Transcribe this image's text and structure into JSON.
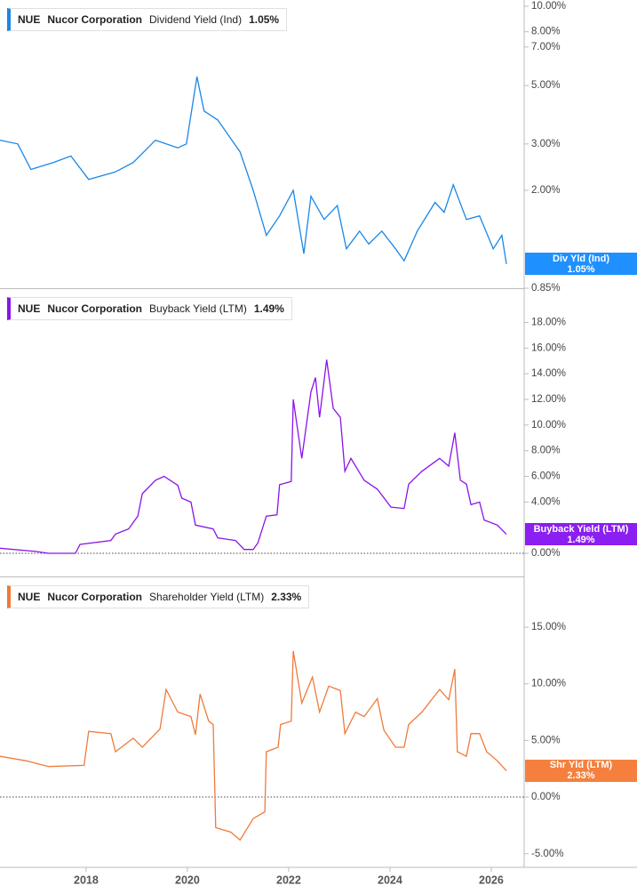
{
  "chart_data": [
    {
      "type": "line",
      "ticker": "NUE",
      "company": "Nucor Corporation",
      "current_label": "1.05%",
      "tag": "Div Yld (Ind)",
      "log_scale": true,
      "zero_line": false,
      "tag_color": "#1e90ff",
      "xlim": [
        2016.3,
        2026.65
      ],
      "ylim": [
        0.85,
        10.56
      ],
      "yticks": [
        {
          "value": 10,
          "label": "10.00%"
        },
        {
          "value": 8,
          "label": "8.00%"
        },
        {
          "value": 7,
          "label": "7.00%"
        },
        {
          "value": 5,
          "label": "5.00%"
        },
        {
          "value": 3,
          "label": "3.00%"
        },
        {
          "value": 2,
          "label": "2.00%"
        },
        {
          "value": 0.85,
          "label": "0.85%"
        }
      ],
      "x": [
        2016.3,
        2016.65,
        2016.91,
        2017.35,
        2017.7,
        2018.05,
        2018.58,
        2018.93,
        2019.37,
        2019.81,
        2019.98,
        2020.19,
        2020.33,
        2020.6,
        2021.04,
        2021.3,
        2021.56,
        2021.82,
        2022.09,
        2022.3,
        2022.44,
        2022.7,
        2022.96,
        2023.14,
        2023.4,
        2023.58,
        2023.84,
        2024.11,
        2024.28,
        2024.54,
        2024.89,
        2025.07,
        2025.25,
        2025.51,
        2025.77,
        2026.04,
        2026.21,
        2026.3
      ],
      "series": [
        {
          "name": "Dividend Yield (Ind)",
          "color": "#1a87e6",
          "values": [
            3.1,
            3.0,
            2.4,
            2.55,
            2.7,
            2.2,
            2.35,
            2.55,
            3.1,
            2.9,
            3.0,
            5.4,
            4.0,
            3.7,
            2.8,
            2.0,
            1.35,
            1.6,
            2.0,
            1.15,
            1.9,
            1.55,
            1.75,
            1.2,
            1.4,
            1.25,
            1.4,
            1.2,
            1.08,
            1.4,
            1.8,
            1.65,
            2.1,
            1.55,
            1.6,
            1.2,
            1.35,
            1.05
          ]
        }
      ]
    },
    {
      "type": "line",
      "ticker": "NUE",
      "company": "Nucor Corporation",
      "current_label": "1.49%",
      "tag": "Buyback Yield (LTM)",
      "log_scale": false,
      "zero_line": true,
      "tag_color": "#8b1ef0",
      "xlim": [
        2016.3,
        2026.65
      ],
      "ylim": [
        -1.8,
        20.6
      ],
      "yticks": [
        {
          "value": 0,
          "label": "0.00%"
        },
        {
          "value": 4,
          "label": "4.00%"
        },
        {
          "value": 6,
          "label": "6.00%"
        },
        {
          "value": 8,
          "label": "8.00%"
        },
        {
          "value": 10,
          "label": "10.00%"
        },
        {
          "value": 12,
          "label": "12.00%"
        },
        {
          "value": 14,
          "label": "14.00%"
        },
        {
          "value": 16,
          "label": "16.00%"
        },
        {
          "value": 18,
          "label": "18.00%"
        }
      ],
      "x": [
        2016.3,
        2017.0,
        2017.26,
        2017.79,
        2017.88,
        2018.49,
        2018.58,
        2018.84,
        2019.02,
        2019.11,
        2019.37,
        2019.54,
        2019.81,
        2019.89,
        2020.07,
        2020.16,
        2020.51,
        2020.6,
        2020.95,
        2021.12,
        2021.3,
        2021.39,
        2021.56,
        2021.77,
        2021.82,
        2022.05,
        2022.09,
        2022.26,
        2022.44,
        2022.53,
        2022.61,
        2022.75,
        2022.88,
        2023.02,
        2023.11,
        2023.23,
        2023.49,
        2023.75,
        2024.02,
        2024.28,
        2024.37,
        2024.63,
        2024.98,
        2025.16,
        2025.28,
        2025.39,
        2025.51,
        2025.6,
        2025.77,
        2025.86,
        2026.12,
        2026.3
      ],
      "series": [
        {
          "name": "Buyback Yield (LTM)",
          "color": "#8a14e8",
          "values": [
            0.4,
            0.15,
            0,
            0,
            0.7,
            1.0,
            1.5,
            1.9,
            2.9,
            4.65,
            5.7,
            6.0,
            5.3,
            4.3,
            4.0,
            2.2,
            1.9,
            1.2,
            1.0,
            0.3,
            0.3,
            0.8,
            2.9,
            3.0,
            5.35,
            5.6,
            12.0,
            7.4,
            12.6,
            13.7,
            10.6,
            15.1,
            11.3,
            10.6,
            6.4,
            7.4,
            5.7,
            5.0,
            3.6,
            3.5,
            5.4,
            6.4,
            7.4,
            6.8,
            9.4,
            5.7,
            5.4,
            3.8,
            4.0,
            2.6,
            2.2,
            1.49
          ]
        }
      ]
    },
    {
      "type": "line",
      "ticker": "NUE",
      "company": "Nucor Corporation",
      "current_label": "2.33%",
      "tag": "Shr Yld (LTM)",
      "log_scale": false,
      "zero_line": true,
      "tag_color": "#f5803e",
      "xlim": [
        2016.3,
        2026.65
      ],
      "ylim": [
        -6.2,
        19.4
      ],
      "xticks": [
        2018,
        2020,
        2022,
        2024,
        2026
      ],
      "yticks": [
        {
          "value": -5,
          "label": "-5.00%"
        },
        {
          "value": 0,
          "label": "0.00%"
        },
        {
          "value": 5,
          "label": "5.00%"
        },
        {
          "value": 10,
          "label": "10.00%"
        },
        {
          "value": 15,
          "label": "15.00%"
        }
      ],
      "x": [
        2016.3,
        2016.82,
        2017.26,
        2017.96,
        2018.05,
        2018.49,
        2018.58,
        2018.93,
        2019.11,
        2019.46,
        2019.58,
        2019.81,
        2020.07,
        2020.16,
        2020.25,
        2020.42,
        2020.51,
        2020.56,
        2020.86,
        2021.04,
        2021.3,
        2021.53,
        2021.56,
        2021.79,
        2021.84,
        2022.05,
        2022.09,
        2022.26,
        2022.47,
        2022.61,
        2022.79,
        2023.02,
        2023.11,
        2023.32,
        2023.49,
        2023.75,
        2023.88,
        2024.11,
        2024.28,
        2024.37,
        2024.63,
        2024.98,
        2025.16,
        2025.28,
        2025.33,
        2025.51,
        2025.6,
        2025.77,
        2025.91,
        2026.12,
        2026.3
      ],
      "series": [
        {
          "name": "Shareholder Yield (LTM)",
          "color": "#f07a3a",
          "values": [
            3.6,
            3.2,
            2.7,
            2.8,
            5.8,
            5.6,
            4.0,
            5.2,
            4.4,
            6.0,
            9.5,
            7.5,
            7.1,
            5.5,
            9.1,
            6.7,
            6.4,
            -2.7,
            -3.1,
            -3.8,
            -1.9,
            -1.3,
            4.0,
            4.4,
            6.4,
            6.7,
            12.9,
            8.3,
            10.6,
            7.5,
            9.8,
            9.4,
            5.6,
            7.5,
            7.1,
            8.7,
            5.9,
            4.4,
            4.4,
            6.4,
            7.5,
            9.5,
            8.6,
            11.3,
            4.0,
            3.6,
            5.6,
            5.6,
            4.0,
            3.2,
            2.33
          ]
        }
      ]
    }
  ]
}
